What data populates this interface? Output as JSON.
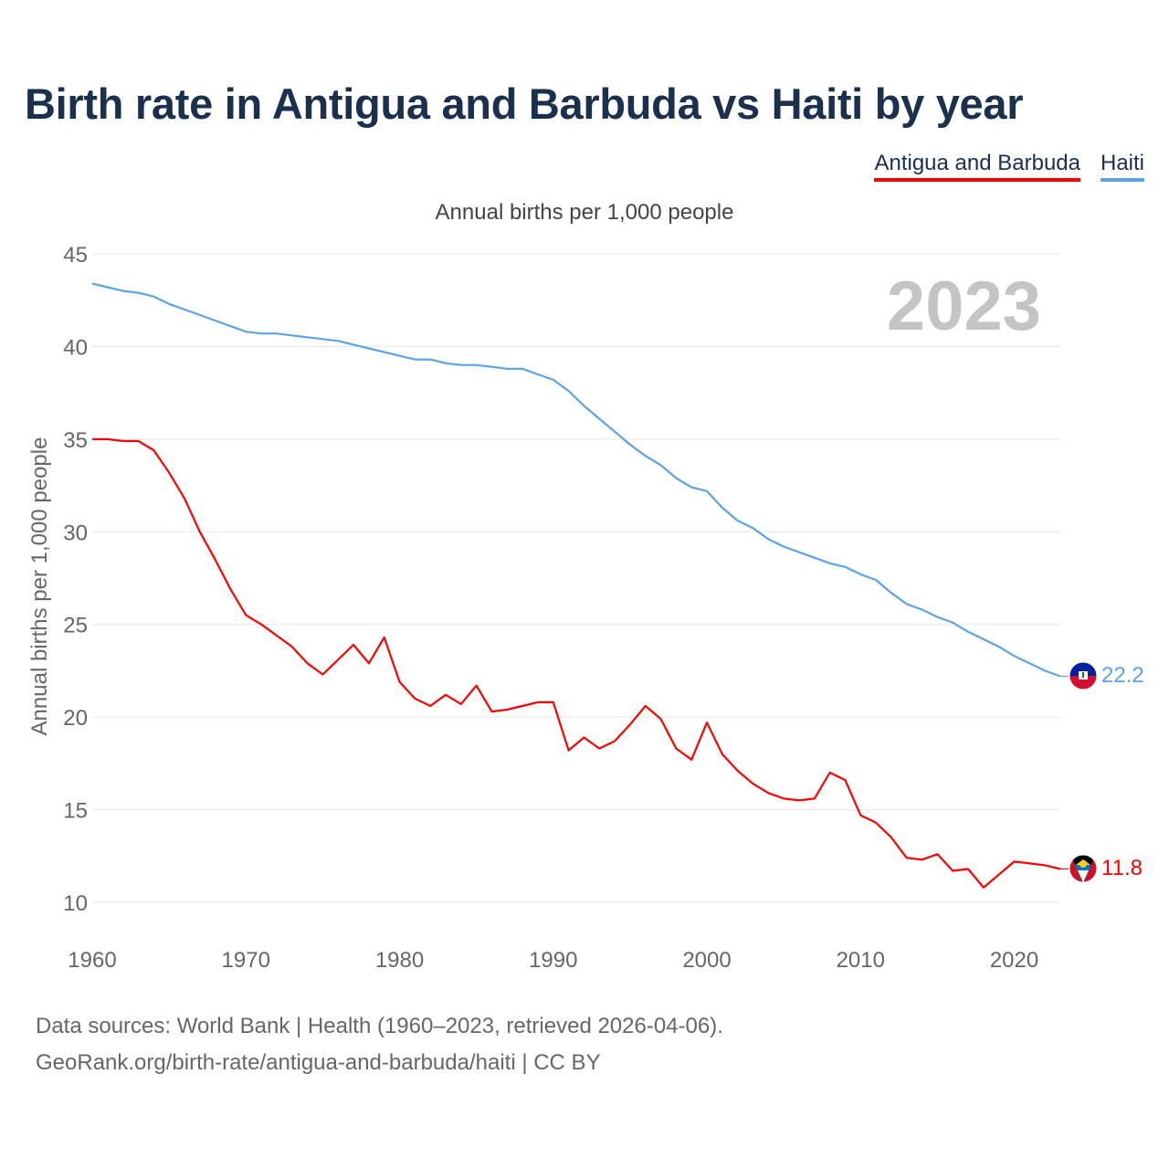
{
  "chart_data": {
    "type": "line",
    "title": "Birth rate in Antigua and Barbuda vs Haiti by year",
    "subtitle": "Annual births per 1,000 people",
    "ylabel": "Annual births per 1,000 people",
    "xlabel": "",
    "xlim": [
      1960,
      2023
    ],
    "ylim": [
      10,
      45
    ],
    "yticks": [
      10,
      15,
      20,
      25,
      30,
      35,
      40,
      45
    ],
    "xticks": [
      1960,
      1970,
      1980,
      1990,
      2000,
      2010,
      2020
    ],
    "year_label": "2023",
    "legend_position": "top-right",
    "x": [
      1960,
      1961,
      1962,
      1963,
      1964,
      1965,
      1966,
      1967,
      1968,
      1969,
      1970,
      1971,
      1972,
      1973,
      1974,
      1975,
      1976,
      1977,
      1978,
      1979,
      1980,
      1981,
      1982,
      1983,
      1984,
      1985,
      1986,
      1987,
      1988,
      1989,
      1990,
      1991,
      1992,
      1993,
      1994,
      1995,
      1996,
      1997,
      1998,
      1999,
      2000,
      2001,
      2002,
      2003,
      2004,
      2005,
      2006,
      2007,
      2008,
      2009,
      2010,
      2011,
      2012,
      2013,
      2014,
      2015,
      2016,
      2017,
      2018,
      2019,
      2020,
      2021,
      2022,
      2023
    ],
    "series": [
      {
        "name": "Antigua and Barbuda",
        "color": "#ff0000",
        "end_label": "11.8",
        "flag": "antigua-and-barbuda-flag-icon",
        "values": [
          35.0,
          35.0,
          34.9,
          34.9,
          34.4,
          33.2,
          31.8,
          30.0,
          28.5,
          26.9,
          25.5,
          25.0,
          24.4,
          23.8,
          22.9,
          22.3,
          23.1,
          23.9,
          22.9,
          24.3,
          21.9,
          21.0,
          20.6,
          21.2,
          20.7,
          21.7,
          20.3,
          20.4,
          20.6,
          20.8,
          20.8,
          18.2,
          18.9,
          18.3,
          18.7,
          19.6,
          20.6,
          19.9,
          18.3,
          17.7,
          19.7,
          18.0,
          17.1,
          16.4,
          15.9,
          15.6,
          15.5,
          15.6,
          17.0,
          16.6,
          14.7,
          14.3,
          13.5,
          12.4,
          12.3,
          12.6,
          11.7,
          11.8,
          10.8,
          11.5,
          12.2,
          12.1,
          12.0,
          11.8
        ]
      },
      {
        "name": "Haiti",
        "color": "#5ba3e6",
        "end_label": "22.2",
        "flag": "haiti-flag-icon",
        "values": [
          43.4,
          43.2,
          43.0,
          42.9,
          42.7,
          42.3,
          42.0,
          41.7,
          41.4,
          41.1,
          40.8,
          40.7,
          40.7,
          40.6,
          40.5,
          40.4,
          40.3,
          40.1,
          39.9,
          39.7,
          39.5,
          39.3,
          39.3,
          39.1,
          39.0,
          39.0,
          38.9,
          38.8,
          38.8,
          38.5,
          38.2,
          37.6,
          36.8,
          36.1,
          35.4,
          34.7,
          34.1,
          33.6,
          32.9,
          32.4,
          32.2,
          31.3,
          30.6,
          30.2,
          29.6,
          29.2,
          28.9,
          28.6,
          28.3,
          28.1,
          27.7,
          27.4,
          26.7,
          26.1,
          25.8,
          25.4,
          25.1,
          24.6,
          24.2,
          23.8,
          23.3,
          22.9,
          22.5,
          22.2
        ]
      }
    ]
  },
  "footer": {
    "line1": "Data sources: World Bank | Health (1960–2023, retrieved 2026-04-06).",
    "line2": "GeoRank.org/birth-rate/antigua-and-barbuda/haiti | CC BY"
  }
}
